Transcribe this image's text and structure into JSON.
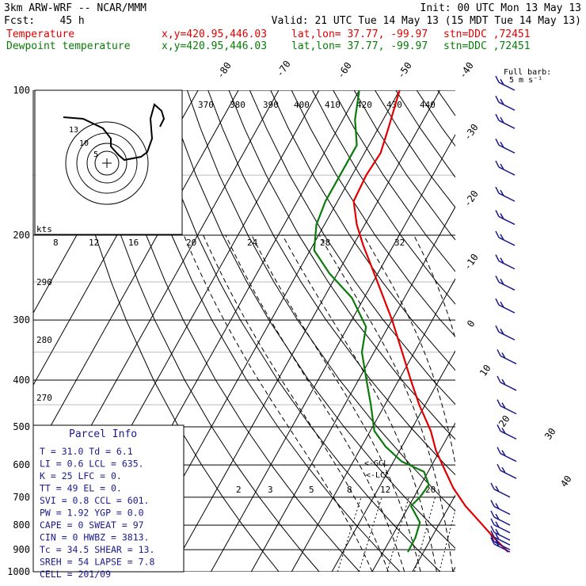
{
  "header": {
    "model": "3km ARW-WRF -- NCAR/MMM",
    "init": "Init: 00 UTC Mon 13 May 13",
    "fcst": "Fcst:    45 h",
    "valid": "Valid: 21 UTC Tue 14 May 13 (15 MDT Tue 14 May 13)",
    "temp_label": "Temperature",
    "dew_label": "Dewpoint temperature",
    "xy": "x,y=420.95,446.03",
    "latlon": "lat,lon= 37.77, -99.97",
    "stn": "stn=DDC ,72451"
  },
  "colors": {
    "temperature": "#e00000",
    "dewpoint": "#0a7a0a",
    "barb": "#1a1a8c",
    "grid": "#000000"
  },
  "barb_legend": {
    "line1": "Full barb:",
    "line2": "5 m s⁻¹"
  },
  "hodograph": {
    "units": "kts",
    "ring_labels": [
      "5",
      "10",
      "13"
    ]
  },
  "chart_data": {
    "type": "line",
    "subtype": "skew-T log-p sounding",
    "y_axis": {
      "label": "",
      "scale": "log",
      "ylim": [
        1000,
        100
      ],
      "ticks": [
        100,
        200,
        300,
        400,
        500,
        600,
        700,
        800,
        900,
        1000
      ]
    },
    "isotherm_labels": [
      "-80",
      "-70",
      "-60",
      "-50",
      "-40",
      "-30",
      "-20",
      "-10",
      "0",
      "10",
      "20",
      "30",
      "40"
    ],
    "theta_labels": [
      "370",
      "380",
      "390",
      "400",
      "410",
      "420",
      "430",
      "440"
    ],
    "theta_side_labels": [
      "290",
      "280",
      "270"
    ],
    "mixing_ratio_labels": [
      "8",
      "12",
      "16",
      "20",
      "24",
      "28",
      "32"
    ],
    "low_mixing_labels": [
      "2",
      "3",
      "5",
      "8",
      "12",
      "20"
    ],
    "lcl_markers": [
      "<-GCL",
      "<-LCL"
    ],
    "series": [
      {
        "name": "Temperature",
        "p": [
          910,
          850,
          790,
          730,
          670,
          610,
          560,
          510,
          450,
          400,
          350,
          300,
          260,
          230,
          210,
          190,
          170,
          150,
          135,
          120,
          100
        ],
        "t": [
          31.0,
          25.5,
          20.0,
          14.0,
          8.5,
          3.5,
          -1.0,
          -5.0,
          -11.5,
          -17.0,
          -23.0,
          -30.0,
          -37.0,
          -43.0,
          -47.5,
          -52.0,
          -56.0,
          -56.5,
          -56.0,
          -57.5,
          -60.0
        ]
      },
      {
        "name": "Dewpoint temperature",
        "p": [
          910,
          850,
          790,
          730,
          700,
          660,
          620,
          590,
          550,
          510,
          450,
          400,
          350,
          310,
          270,
          240,
          215,
          190,
          170,
          150,
          130,
          115,
          100
        ],
        "t": [
          6.1,
          6.0,
          5.0,
          0.5,
          1.5,
          2.0,
          -1.0,
          -8.0,
          -14.0,
          -19.0,
          -23.5,
          -28.0,
          -33.0,
          -35.5,
          -43.0,
          -52.0,
          -59.0,
          -62.0,
          -63.0,
          -63.0,
          -63.0,
          -67.0,
          -70.0
        ]
      }
    ]
  },
  "parcel": {
    "title": "Parcel Info",
    "rows": [
      {
        "l1": "T",
        "v1": "31.0",
        "l2": "Td",
        "v2": "6.1"
      },
      {
        "l1": "LI",
        "v1": "0.6",
        "l2": "LCL",
        "v2": "635."
      },
      {
        "l1": "K",
        "v1": "25",
        "l2": "LFC",
        "v2": "0."
      },
      {
        "l1": "TT",
        "v1": "49",
        "l2": "EL",
        "v2": "0."
      },
      {
        "l1": "SVI",
        "v1": "0.8",
        "l2": "CCL",
        "v2": "601."
      },
      {
        "l1": "PW",
        "v1": "1.92",
        "l2": "YGP",
        "v2": "0.0"
      },
      {
        "l1": "CAPE",
        "v1": "0",
        "l2": "SWEAT",
        "v2": "97"
      },
      {
        "l1": "CIN",
        "v1": "0",
        "l2": "HWBZ",
        "v2": "3813."
      },
      {
        "l1": "Tc",
        "v1": "34.5",
        "l2": "SHEAR",
        "v2": "13."
      },
      {
        "l1": "SREH",
        "v1": "54",
        "l2": "LAPSE",
        "v2": "7.8"
      }
    ],
    "cell": "CELL = 201/09"
  }
}
